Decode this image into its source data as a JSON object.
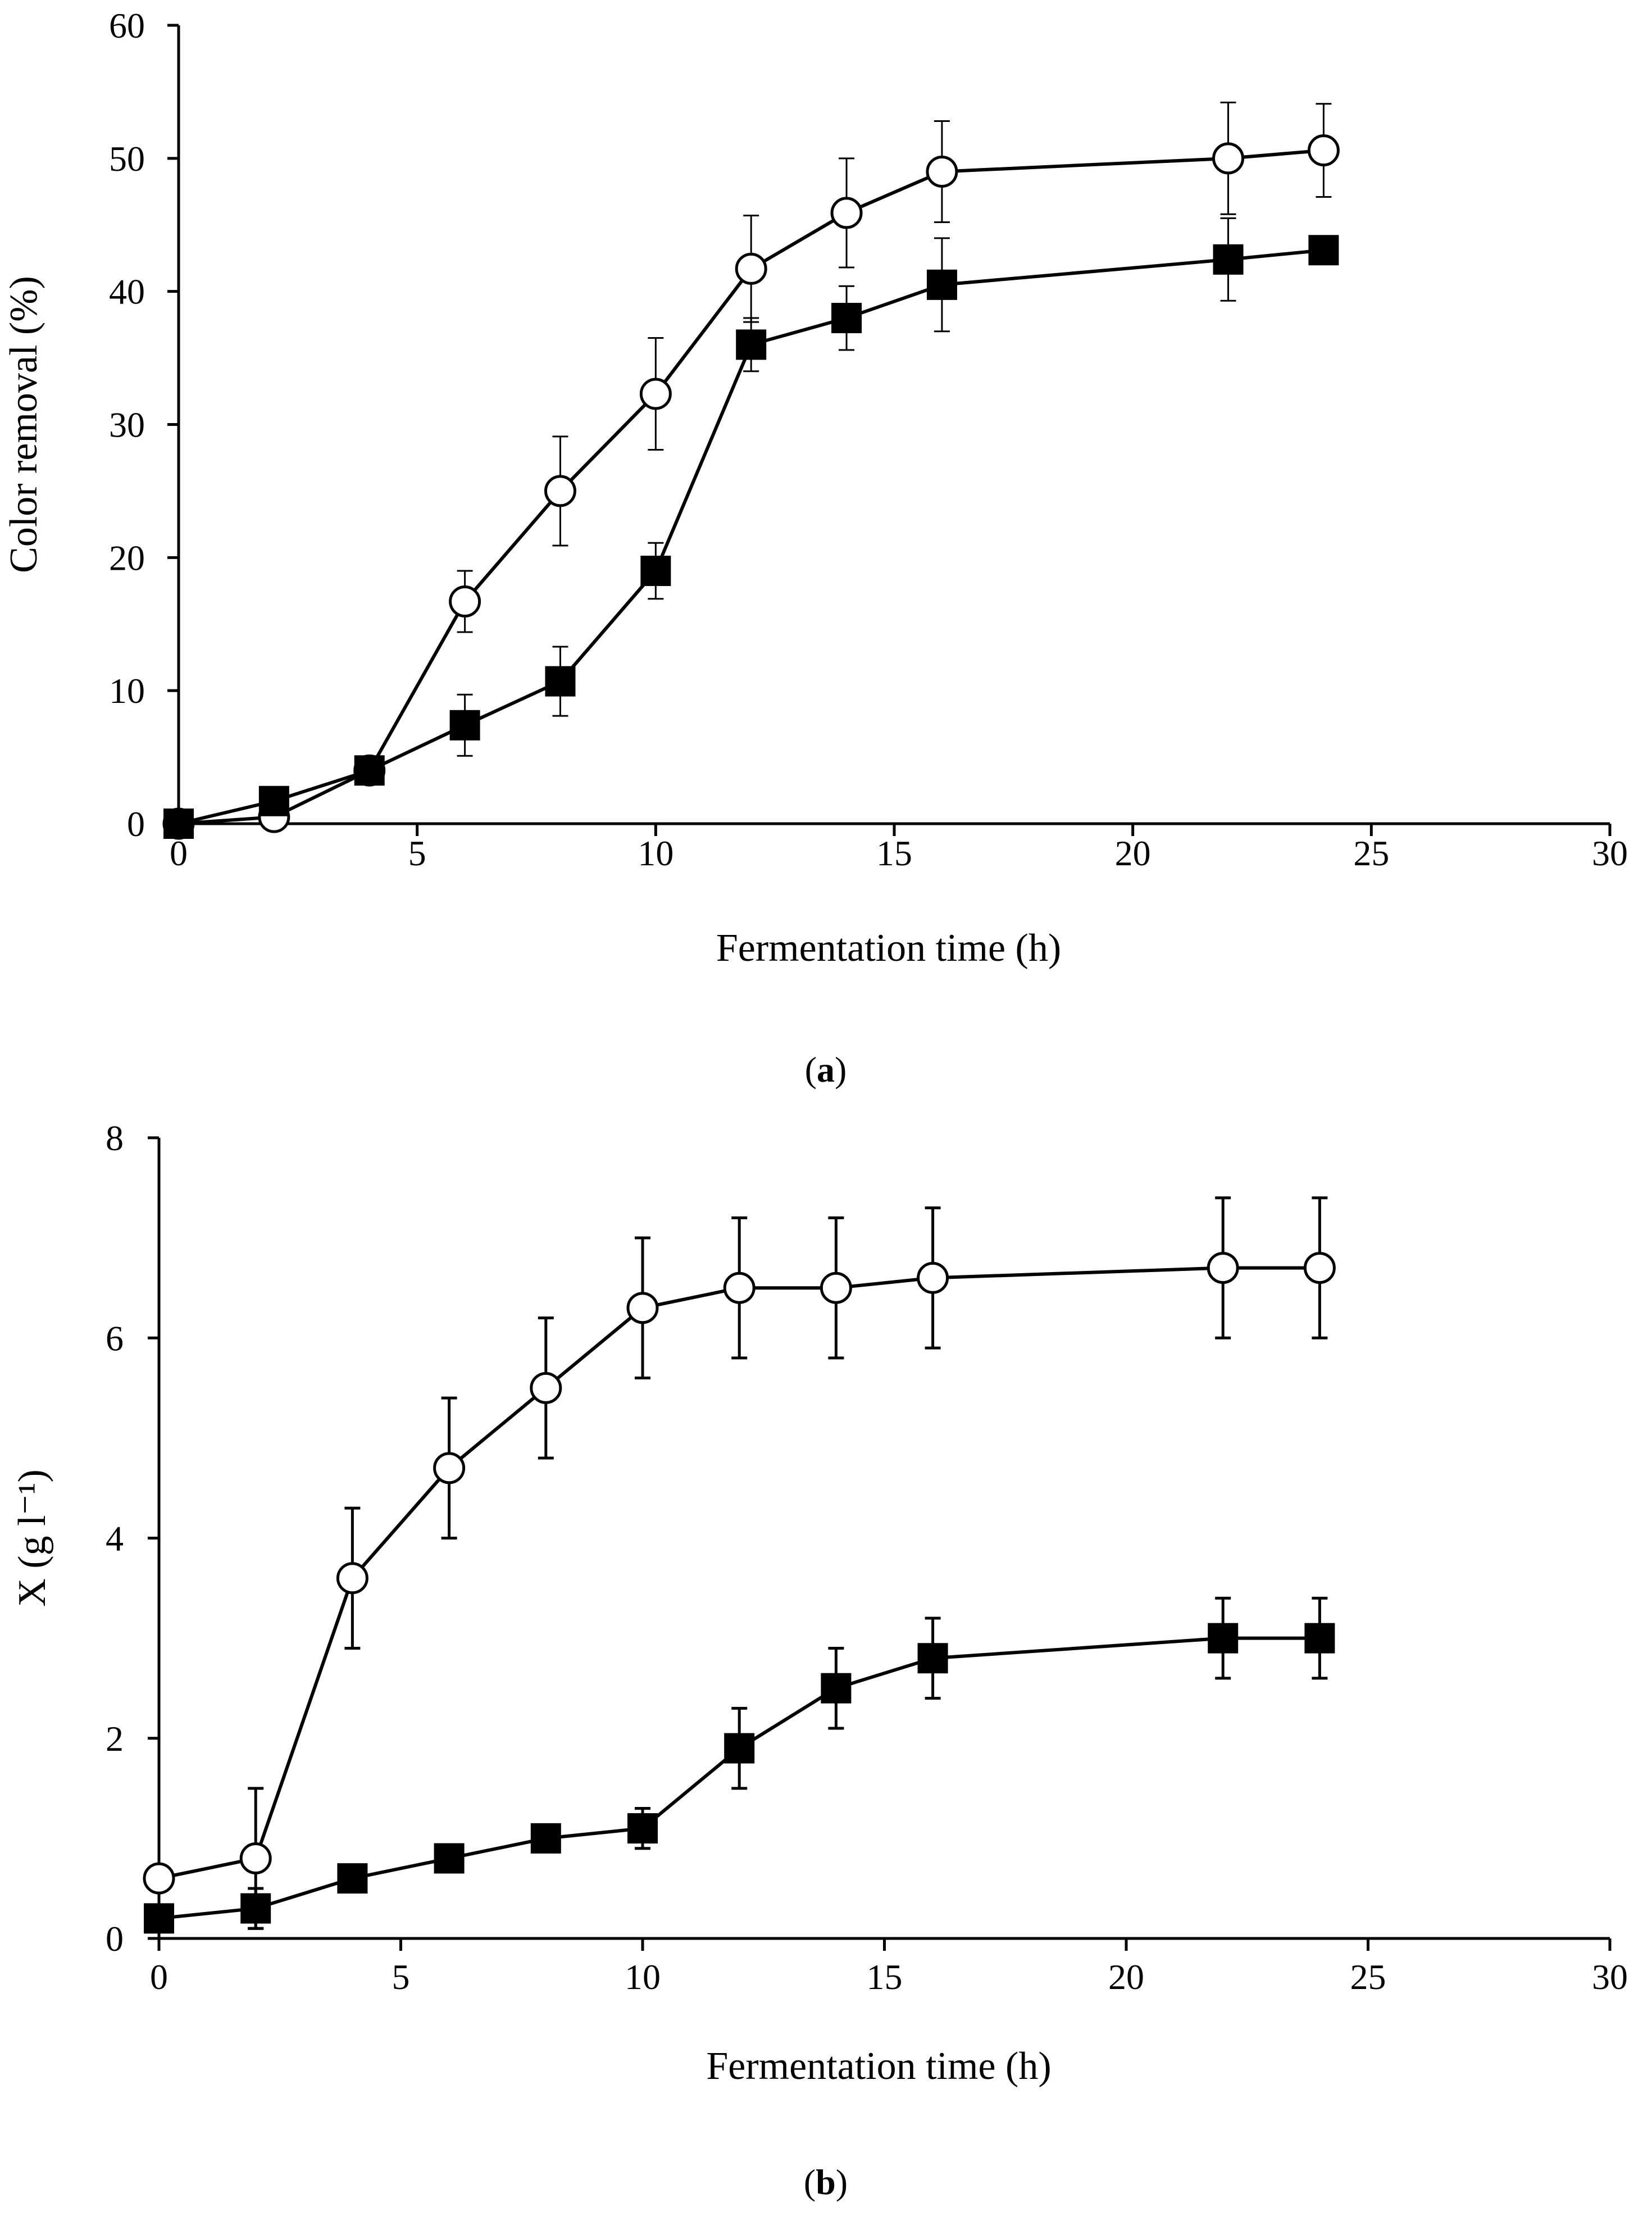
{
  "chart_data": [
    {
      "type": "line",
      "panel_label": {
        "open": "(",
        "letter": "a",
        "close": ")"
      },
      "xlabel": "Fermentation time (h)",
      "ylabel": "Color removal (%)",
      "xlim": [
        0,
        30
      ],
      "ylim": [
        0,
        60
      ],
      "xticks": [
        "0",
        "5",
        "10",
        "15",
        "20",
        "25",
        "30"
      ],
      "yticks": [
        "0",
        "10",
        "20",
        "30",
        "40",
        "50",
        "60"
      ],
      "series": [
        {
          "name": "open circles",
          "marker": "circle-open",
          "x": [
            0,
            2,
            4,
            6,
            8,
            10,
            12,
            14,
            16,
            22,
            24
          ],
          "y": [
            0,
            0.5,
            4,
            16.7,
            25,
            32.3,
            41.7,
            45.9,
            49,
            50,
            50.6
          ],
          "err": [
            0,
            0,
            0,
            2.3,
            4.1,
            4.2,
            4.0,
            4.1,
            3.8,
            4.2,
            3.5
          ]
        },
        {
          "name": "filled squares",
          "marker": "square-filled",
          "x": [
            0,
            2,
            4,
            6,
            8,
            10,
            12,
            14,
            16,
            22,
            24
          ],
          "y": [
            0,
            1.7,
            4,
            7.4,
            10.7,
            19,
            36,
            38,
            40.5,
            42.4,
            43.1
          ],
          "err": [
            0,
            0,
            0,
            2.3,
            2.6,
            2.1,
            2.0,
            2.4,
            3.5,
            3.1,
            0
          ]
        }
      ]
    },
    {
      "type": "line",
      "panel_label": {
        "open": "(",
        "letter": "b",
        "close": ")"
      },
      "xlabel": "Fermentation time (h)",
      "ylabel": "X (g l⁻¹)",
      "xlim": [
        0,
        30
      ],
      "ylim": [
        0,
        8
      ],
      "xticks": [
        "0",
        "5",
        "10",
        "15",
        "20",
        "25",
        "30"
      ],
      "yticks": [
        "0",
        "2",
        "4",
        "6",
        "8"
      ],
      "series": [
        {
          "name": "open circles",
          "marker": "circle-open",
          "x": [
            0,
            2,
            4,
            6,
            8,
            10,
            12,
            14,
            16,
            22,
            24
          ],
          "y": [
            0.6,
            0.8,
            3.6,
            4.7,
            5.5,
            6.3,
            6.5,
            6.5,
            6.6,
            6.7,
            6.7
          ],
          "err": [
            0,
            0.7,
            0.7,
            0.7,
            0.7,
            0.7,
            0.7,
            0.7,
            0.7,
            0.7,
            0.7
          ]
        },
        {
          "name": "filled squares",
          "marker": "square-filled",
          "x": [
            0,
            2,
            4,
            6,
            8,
            10,
            12,
            14,
            16,
            22,
            24
          ],
          "y": [
            0.2,
            0.3,
            0.6,
            0.8,
            1.0,
            1.1,
            1.9,
            2.5,
            2.8,
            3.0,
            3.0
          ],
          "err": [
            0.1,
            0.2,
            0,
            0,
            0,
            0.2,
            0.4,
            0.4,
            0.4,
            0.4,
            0.4
          ]
        }
      ]
    }
  ]
}
